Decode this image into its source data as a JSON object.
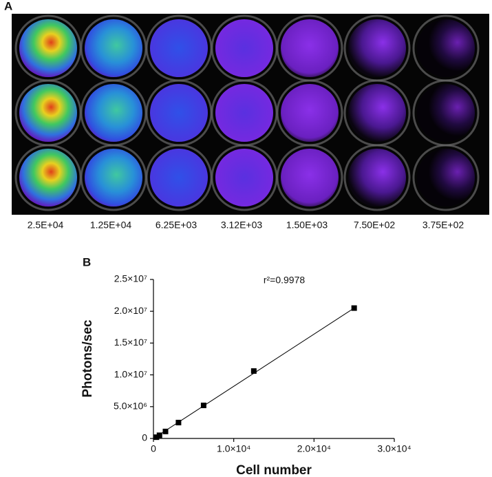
{
  "panel_a": {
    "label": "A",
    "well_labels": [
      "2.5E+04",
      "1.25E+04",
      "6.25E+03",
      "3.12E+03",
      "1.50E+03",
      "7.50E+02",
      "3.75E+02"
    ]
  },
  "chart_data": {
    "type": "scatter",
    "panel_label": "B",
    "x_label": "Cell number",
    "y_label": "Photons/sec",
    "annotation": "r²=0.9978",
    "x": [
      25000,
      12500,
      6250,
      3120,
      1500,
      750,
      375
    ],
    "values": [
      20500000,
      10600000,
      5200000,
      2500000,
      1100000,
      500000,
      200000
    ],
    "color": "#000000",
    "xlim": [
      0,
      30000
    ],
    "xticks": [
      0,
      {
        "value": 10000,
        "label": "1.0×10⁴"
      },
      {
        "value": 20000,
        "label": "2.0×10⁴"
      },
      {
        "value": 30000,
        "label": "3.0×10⁴"
      }
    ],
    "ylim": [
      0,
      25000000
    ],
    "yticks": [
      0,
      {
        "value": 5000000,
        "label": "5.0×10⁶"
      },
      {
        "value": 10000000,
        "label": "1.0×10⁷"
      },
      {
        "value": 15000000,
        "label": "1.5×10⁷"
      },
      {
        "value": 20000000,
        "label": "2.0×10⁷"
      },
      {
        "value": 25000000,
        "label": "2.5×10⁷"
      }
    ]
  }
}
